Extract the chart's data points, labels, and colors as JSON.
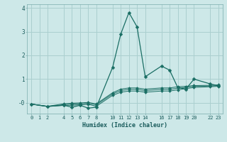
{
  "xlabel": "Humidex (Indice chaleur)",
  "bg_color": "#cde8e8",
  "grid_color": "#aacfcf",
  "line_color": "#1a6e64",
  "xlim": [
    -0.5,
    23.5
  ],
  "ylim": [
    -0.45,
    4.15
  ],
  "xticks": [
    0,
    1,
    2,
    4,
    5,
    6,
    7,
    8,
    10,
    11,
    12,
    13,
    14,
    16,
    17,
    18,
    19,
    20,
    22,
    23
  ],
  "yticks": [
    0,
    1,
    2,
    3,
    4
  ],
  "ytick_labels": [
    "-0",
    "1",
    "2",
    "3",
    "4"
  ],
  "series": [
    {
      "x": [
        0,
        2,
        4,
        5,
        6,
        7,
        8,
        10,
        11,
        12,
        13,
        14,
        16,
        17,
        18,
        19,
        20,
        22,
        23
      ],
      "y": [
        -0.05,
        -0.15,
        -0.1,
        -0.18,
        -0.1,
        -0.22,
        -0.18,
        1.5,
        2.9,
        3.8,
        3.2,
        1.1,
        1.55,
        1.38,
        0.65,
        0.58,
        1.0,
        0.8,
        0.72
      ]
    },
    {
      "x": [
        0,
        2,
        4,
        5,
        6,
        7,
        8,
        10,
        11,
        12,
        13,
        14,
        16,
        17,
        18,
        19,
        20,
        22,
        23
      ],
      "y": [
        -0.05,
        -0.15,
        -0.1,
        -0.1,
        -0.08,
        -0.06,
        -0.14,
        0.32,
        0.45,
        0.5,
        0.5,
        0.45,
        0.5,
        0.5,
        0.55,
        0.6,
        0.65,
        0.68,
        0.7
      ]
    },
    {
      "x": [
        0,
        2,
        4,
        5,
        6,
        7,
        8,
        10,
        11,
        12,
        13,
        14,
        16,
        17,
        18,
        19,
        20,
        22,
        23
      ],
      "y": [
        -0.05,
        -0.15,
        -0.07,
        -0.05,
        -0.04,
        -0.02,
        -0.08,
        0.38,
        0.52,
        0.57,
        0.57,
        0.52,
        0.57,
        0.57,
        0.62,
        0.65,
        0.7,
        0.71,
        0.73
      ]
    },
    {
      "x": [
        0,
        2,
        4,
        5,
        6,
        7,
        8,
        10,
        11,
        12,
        13,
        14,
        16,
        17,
        18,
        19,
        20,
        22,
        23
      ],
      "y": [
        -0.05,
        -0.14,
        -0.04,
        -0.01,
        0.0,
        0.02,
        -0.04,
        0.43,
        0.58,
        0.63,
        0.63,
        0.58,
        0.63,
        0.63,
        0.68,
        0.7,
        0.73,
        0.74,
        0.76
      ]
    }
  ]
}
